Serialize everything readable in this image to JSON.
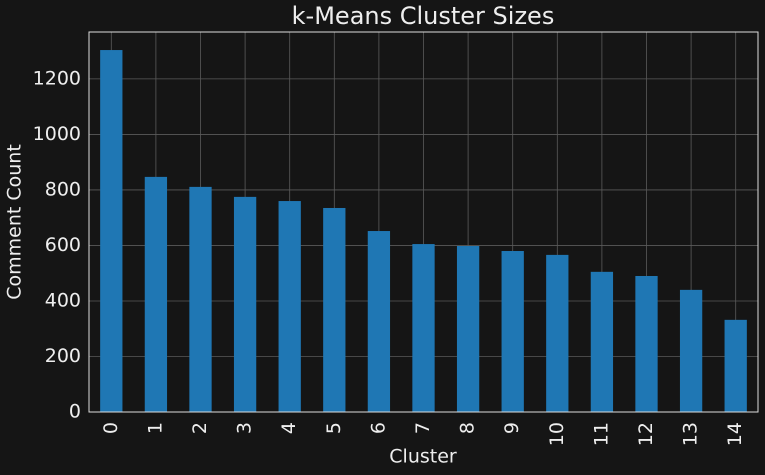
{
  "chart_data": {
    "type": "bar",
    "title": "k-Means Cluster Sizes",
    "x_label": "Cluster",
    "y_label": "Comment Count",
    "categories": [
      "0",
      "1",
      "2",
      "3",
      "4",
      "5",
      "6",
      "7",
      "8",
      "9",
      "10",
      "11",
      "12",
      "13",
      "14"
    ],
    "values": [
      1304,
      847,
      811,
      775,
      760,
      735,
      652,
      605,
      598,
      580,
      566,
      505,
      490,
      440,
      332
    ],
    "color": "#1f77b4",
    "ylim": [
      0,
      1369
    ],
    "yticks": [
      0,
      200,
      400,
      600,
      800,
      1000,
      1200
    ],
    "grid": true
  }
}
